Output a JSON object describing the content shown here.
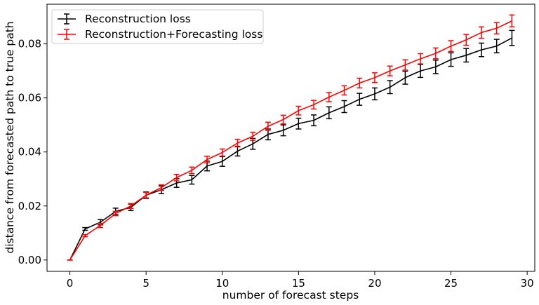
{
  "chart_data": {
    "type": "line",
    "title": "",
    "xlabel": "number of forecast steps",
    "ylabel": "distance from forecasted path to true path",
    "xlim": [
      -1.5,
      30.5
    ],
    "ylim": [
      -0.0042,
      0.0947
    ],
    "xticks": [
      0,
      5,
      10,
      15,
      20,
      25,
      30
    ],
    "xtick_labels": [
      "0",
      "5",
      "10",
      "15",
      "20",
      "25",
      "30"
    ],
    "yticks": [
      0.0,
      0.02,
      0.04,
      0.06,
      0.08
    ],
    "ytick_labels": [
      "0.00",
      "0.02",
      "0.04",
      "0.06",
      "0.08"
    ],
    "grid": false,
    "legend_position": "top-left",
    "x": [
      0,
      1,
      2,
      3,
      4,
      5,
      6,
      7,
      8,
      9,
      10,
      11,
      12,
      13,
      14,
      15,
      16,
      17,
      18,
      19,
      20,
      21,
      22,
      23,
      24,
      25,
      26,
      27,
      28,
      29
    ],
    "series": [
      {
        "name": "Reconstruction loss",
        "color": "#000000",
        "values": [
          0.0,
          0.0115,
          0.014,
          0.018,
          0.0195,
          0.024,
          0.026,
          0.0285,
          0.0297,
          0.0348,
          0.0365,
          0.0403,
          0.043,
          0.0465,
          0.048,
          0.0505,
          0.0517,
          0.0545,
          0.0568,
          0.0595,
          0.0615,
          0.064,
          0.0675,
          0.07,
          0.0715,
          0.0742,
          0.0758,
          0.0778,
          0.0792,
          0.0822
        ],
        "errors": [
          0.0,
          0.0005,
          0.001,
          0.0012,
          0.0012,
          0.0012,
          0.0014,
          0.0016,
          0.0016,
          0.0018,
          0.0018,
          0.0018,
          0.002,
          0.002,
          0.002,
          0.002,
          0.002,
          0.0022,
          0.0022,
          0.0022,
          0.0022,
          0.0024,
          0.0024,
          0.0024,
          0.0025,
          0.0025,
          0.0025,
          0.0025,
          0.0025,
          0.0028
        ]
      },
      {
        "name": "Reconstruction+Forecasting loss",
        "color": "#ff0000",
        "values": [
          0.0,
          0.009,
          0.0128,
          0.0172,
          0.02,
          0.024,
          0.0268,
          0.0305,
          0.0332,
          0.0372,
          0.0398,
          0.0433,
          0.0458,
          0.0495,
          0.052,
          0.0553,
          0.0575,
          0.0603,
          0.0628,
          0.0655,
          0.0675,
          0.07,
          0.0722,
          0.0745,
          0.0765,
          0.0792,
          0.0815,
          0.0842,
          0.0858,
          0.0885
        ],
        "errors": [
          0.0,
          0.0004,
          0.0008,
          0.0008,
          0.0009,
          0.001,
          0.001,
          0.0012,
          0.0012,
          0.0012,
          0.0013,
          0.0014,
          0.0015,
          0.0015,
          0.0016,
          0.0016,
          0.0016,
          0.0017,
          0.0017,
          0.0018,
          0.0018,
          0.0018,
          0.0019,
          0.0019,
          0.002,
          0.002,
          0.002,
          0.0021,
          0.0021,
          0.0022
        ]
      }
    ]
  }
}
